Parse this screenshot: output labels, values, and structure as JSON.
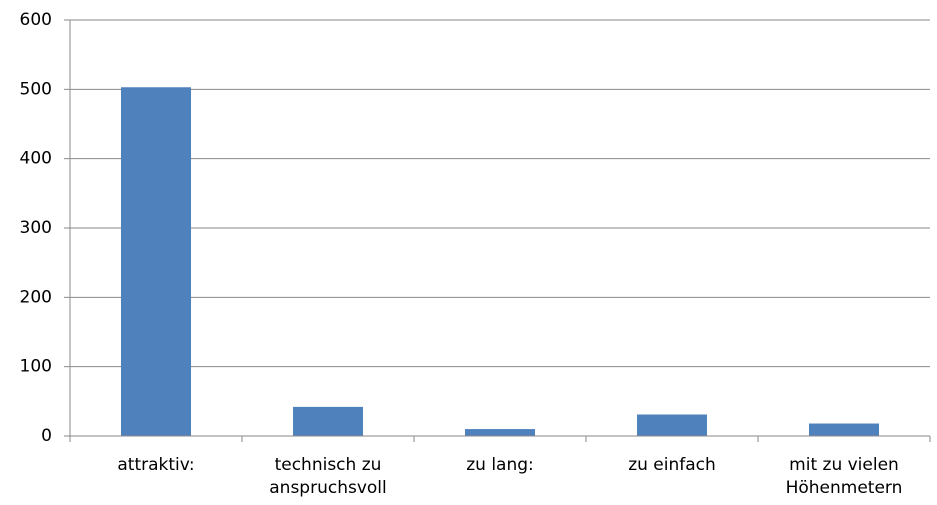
{
  "chart_data": {
    "type": "bar",
    "categories": [
      "attraktiv:",
      "technisch zu anspruchsvoll",
      "zu lang:",
      "zu einfach",
      "mit zu vielen Höhenmetern"
    ],
    "values": [
      503,
      42,
      10,
      31,
      18
    ],
    "color": "#4f81bd",
    "ylim": [
      0,
      600
    ],
    "yticks": [
      0,
      100,
      200,
      300,
      400,
      500,
      600
    ],
    "grid": true
  }
}
